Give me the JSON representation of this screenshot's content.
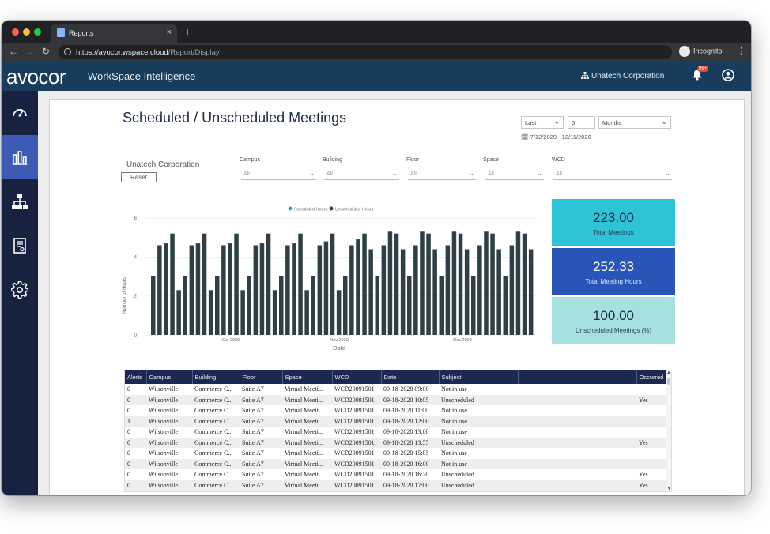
{
  "browser": {
    "tab_title": "Reports",
    "new_tab": "+",
    "close": "×",
    "url_host": "https://avocor.wspace.cloud",
    "url_path": "/Report/Display",
    "incognito_label": "Incognito",
    "menu": "⋮"
  },
  "app": {
    "logo": "avocor",
    "title": "WorkSpace Intelligence",
    "organization": "Unatech Corporation",
    "notification_badge": "99+"
  },
  "sidebar": {
    "items": [
      {
        "icon": "dashboard-gauge-icon",
        "active": false
      },
      {
        "icon": "bar-chart-icon",
        "active": true
      },
      {
        "icon": "org-hierarchy-icon",
        "active": false
      },
      {
        "icon": "report-document-icon",
        "active": false
      },
      {
        "icon": "gear-icon",
        "active": false
      }
    ]
  },
  "page": {
    "title": "Scheduled / Unscheduled Meetings",
    "period_mode": "Last",
    "period_count": "5",
    "period_unit": "Months",
    "date_range": "7/12/2020 - 12/11/2020",
    "corporation": "Unatech Corporation",
    "reset_label": "Reset"
  },
  "filters": [
    {
      "label": "Campus",
      "value": "All"
    },
    {
      "label": "Building",
      "value": "All"
    },
    {
      "label": "Floor",
      "value": "All"
    },
    {
      "label": "Space",
      "value": "All"
    },
    {
      "label": "WCD",
      "value": "All"
    }
  ],
  "kpis": [
    {
      "value": "223.00",
      "label": "Total Meetings",
      "color": "#2ec4d8"
    },
    {
      "value": "252.33",
      "label": "Total Meeting Hours",
      "color": "#2954b8"
    },
    {
      "value": "100.00",
      "label": "Unscheduled Meetings (%)",
      "color": "#a6e1df"
    }
  ],
  "chart_data": {
    "type": "bar",
    "legend": [
      "Scheduled Hours",
      "Unscheduled Hours"
    ],
    "legend_colors": [
      "#27b3c2",
      "#2e4045"
    ],
    "xlabel": "Date",
    "ylabel": "Number of Hours",
    "ylim": [
      0,
      6
    ],
    "yticks": [
      0,
      2,
      4,
      6
    ],
    "xtick_labels": [
      "Oct 2020",
      "Nov 2020",
      "Dec 2020"
    ],
    "series": [
      {
        "name": "Unscheduled Hours",
        "values": [
          3,
          4.6,
          4.7,
          5.2,
          2.3,
          3,
          4.6,
          4.7,
          5.2,
          2.3,
          3,
          4.6,
          4.7,
          5.2,
          2.3,
          3,
          4.6,
          4.7,
          5.2,
          2.3,
          3,
          4.6,
          4.7,
          5.2,
          2.3,
          3,
          4.6,
          4.8,
          5.2,
          2.3,
          3,
          4.6,
          4.9,
          5.2,
          4.4,
          3,
          4.6,
          5.3,
          5.2,
          4.4,
          3,
          4.6,
          5.3,
          5.2,
          4.4,
          3,
          4.6,
          5.3,
          5.2,
          4.4,
          3,
          4.6,
          5.3,
          5.2,
          4.4,
          3,
          4.6,
          5.3,
          5.2,
          4.4
        ]
      }
    ],
    "grid": true
  },
  "table": {
    "columns": [
      "Alerts",
      "Campus",
      "Building",
      "Floor",
      "Space",
      "WCD",
      "Date",
      "Subject",
      "",
      "Occurred"
    ],
    "sort_indicator": "▲",
    "rows": [
      [
        "0",
        "Wilsonville",
        "Commerce C...",
        "Suite A7",
        "Virtual Meeti...",
        "WCD20091501",
        "09-18-2020 09:00",
        "Not in use",
        "",
        ""
      ],
      [
        "0",
        "Wilsonville",
        "Commerce C...",
        "Suite A7",
        "Virtual Meeti...",
        "WCD20091501",
        "09-18-2020 10:05",
        "Unscheduled",
        "",
        "Yes"
      ],
      [
        "0",
        "Wilsonville",
        "Commerce C...",
        "Suite A7",
        "Virtual Meeti...",
        "WCD20091501",
        "09-18-2020 11:00",
        "Not in use",
        "",
        ""
      ],
      [
        "1",
        "Wilsonville",
        "Commerce C...",
        "Suite A7",
        "Virtual Meeti...",
        "WCD20091501",
        "09-18-2020 12:00",
        "Not in use",
        "",
        ""
      ],
      [
        "0",
        "Wilsonville",
        "Commerce C...",
        "Suite A7",
        "Virtual Meeti...",
        "WCD20091501",
        "09-18-2020 13:00",
        "Not in use",
        "",
        ""
      ],
      [
        "0",
        "Wilsonville",
        "Commerce C...",
        "Suite A7",
        "Virtual Meeti...",
        "WCD20091501",
        "09-18-2020 13:55",
        "Unscheduled",
        "",
        "Yes"
      ],
      [
        "0",
        "Wilsonville",
        "Commerce C...",
        "Suite A7",
        "Virtual Meeti...",
        "WCD20091501",
        "09-18-2020 15:05",
        "Not in use",
        "",
        ""
      ],
      [
        "0",
        "Wilsonville",
        "Commerce C...",
        "Suite A7",
        "Virtual Meeti...",
        "WCD20091501",
        "09-18-2020 16:00",
        "Not in use",
        "",
        ""
      ],
      [
        "0",
        "Wilsonville",
        "Commerce C...",
        "Suite A7",
        "Virtual Meeti...",
        "WCD20091501",
        "09-18-2020 16:30",
        "Unscheduled",
        "",
        "Yes"
      ],
      [
        "0",
        "Wilsonville",
        "Commerce C...",
        "Suite A7",
        "Virtual Meeti...",
        "WCD20091501",
        "09-18-2020 17:00",
        "Unscheduled",
        "",
        "Yes"
      ]
    ]
  }
}
